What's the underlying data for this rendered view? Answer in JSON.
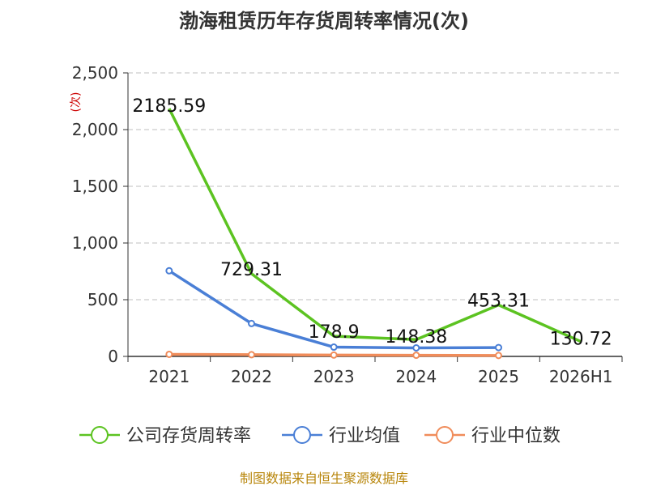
{
  "chart_data": {
    "type": "line",
    "title": "渤海租赁历年存货周转率情况(次)",
    "ylabel": "(次)",
    "xlabel": "",
    "categories": [
      "2021",
      "2022",
      "2023",
      "2024",
      "2025",
      "2026H1"
    ],
    "ylim": [
      0,
      2500
    ],
    "yticks": [
      0,
      500,
      1000,
      1500,
      2000,
      2500
    ],
    "ytick_labels": [
      "0",
      "500",
      "1,000",
      "1,500",
      "2,000",
      "2,500"
    ],
    "grid": true,
    "legend_position": "bottom",
    "series": [
      {
        "name": "公司存货周转率",
        "color": "#5cc321",
        "values": [
          2185.59,
          729.31,
          178.9,
          148.38,
          453.31,
          130.72
        ],
        "labels": [
          "2185.59",
          "729.31",
          "178.9",
          "148.38",
          "453.31",
          "130.72"
        ]
      },
      {
        "name": "行业均值",
        "color": "#4a7fd6",
        "values": [
          755,
          290,
          82,
          75,
          78,
          null
        ]
      },
      {
        "name": "行业中位数",
        "color": "#f08c5a",
        "values": [
          18,
          15,
          12,
          10,
          8,
          null
        ]
      }
    ]
  },
  "source": "制图数据来自恒生聚源数据库"
}
